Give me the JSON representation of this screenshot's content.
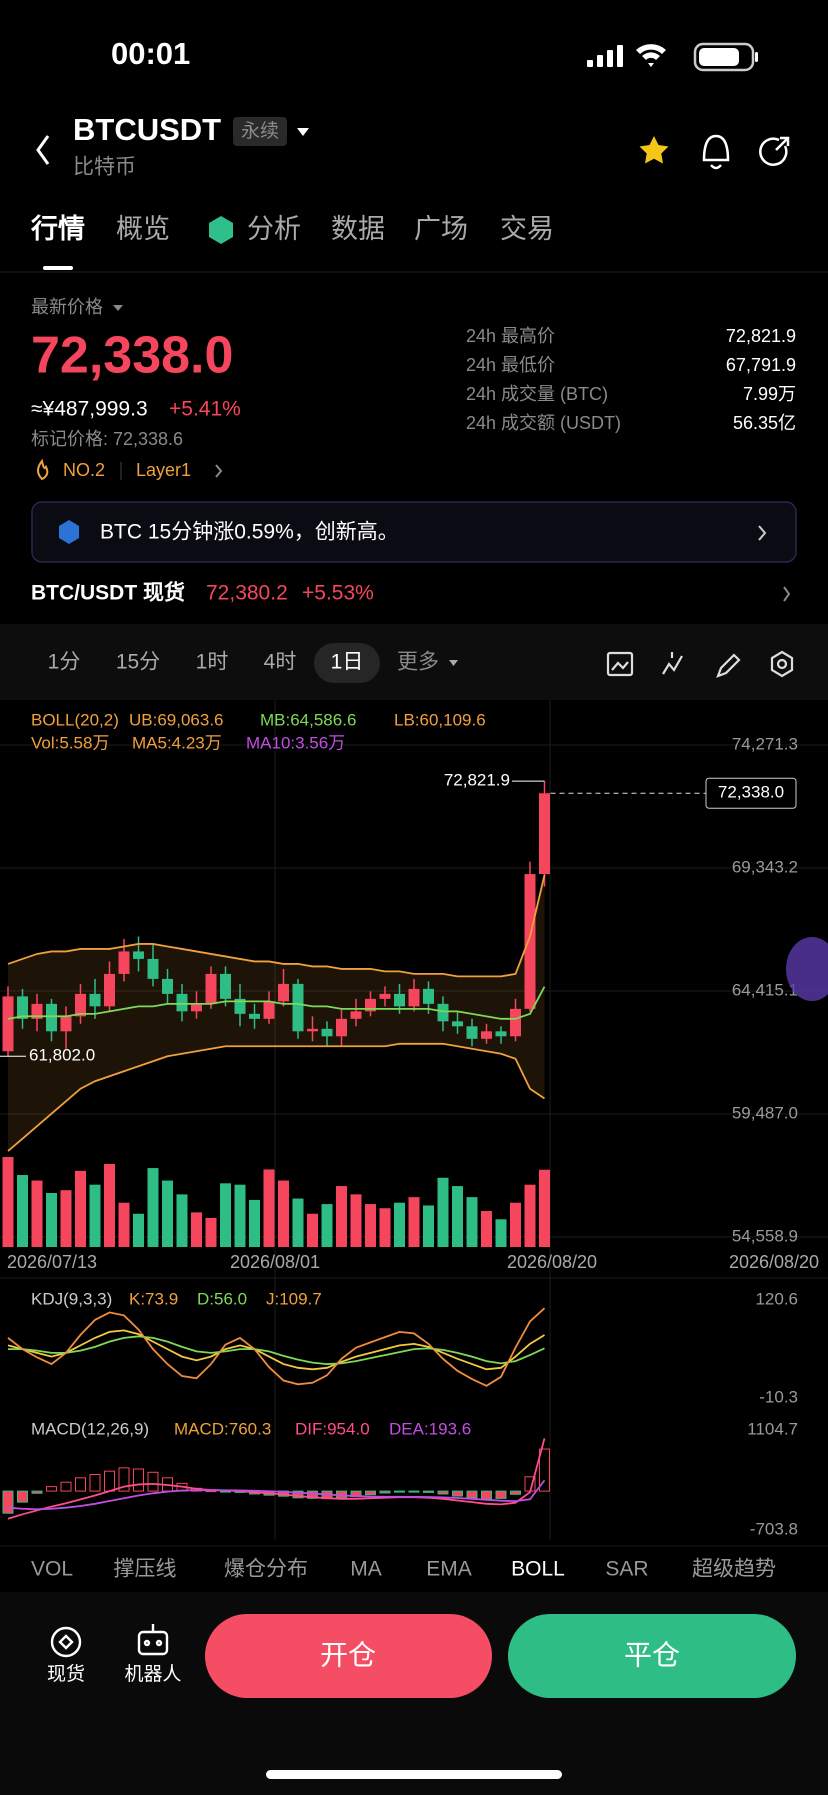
{
  "status_bar": {
    "time": "00:01"
  },
  "header": {
    "symbol": "BTCUSDT",
    "badge": "永续",
    "subtitle": "比特币"
  },
  "tabs": [
    "行情",
    "概览",
    "分析",
    "数据",
    "广场",
    "交易"
  ],
  "ticker": {
    "caption": "最新价格",
    "price": "72,338.0",
    "cny": "≈¥487,999.3",
    "change": "+5.41%",
    "mark": "标记价格: 72,338.6",
    "rank": "NO.2",
    "sector": "Layer1"
  },
  "stats": [
    {
      "label": "24h 最高价",
      "value": "72,821.9"
    },
    {
      "label": "24h 最低价",
      "value": "67,791.9"
    },
    {
      "label": "24h 成交量 (BTC)",
      "value": "7.99万"
    },
    {
      "label": "24h 成交额 (USDT)",
      "value": "56.35亿"
    }
  ],
  "banner": {
    "text": "BTC 15分钟涨0.59%，创新高。"
  },
  "spot": {
    "label": "BTC/USDT 现货",
    "price": "72,380.2",
    "change": "+5.53%"
  },
  "timeframes": [
    "1分",
    "15分",
    "1时",
    "4时",
    "1日"
  ],
  "more": "更多",
  "chart": {
    "type": "candlestick",
    "legend_boll": [
      "BOLL(20,2)",
      "UB:69,063.6",
      "MB:64,586.6",
      "LB:60,109.6"
    ],
    "legend_vol": [
      "Vol:5.58万",
      "MA5:4.23万",
      "MA10:3.56万"
    ],
    "legend_kdj": [
      "KDJ(9,3,3)",
      "K:73.9",
      "D:56.0",
      "J:109.7"
    ],
    "legend_macd": [
      "MACD(12,26,9)",
      "MACD:760.3",
      "DIF:954.0",
      "DEA:193.6"
    ],
    "ylim": [
      54558.9,
      74271.3
    ],
    "yticks": [
      {
        "value": 74271.3,
        "label": "74,271.3"
      },
      {
        "value": 69343.2,
        "label": "69,343.2"
      },
      {
        "value": 64415.1,
        "label": "64,415.1"
      },
      {
        "value": 59487.0,
        "label": "59,487.0"
      },
      {
        "value": 54558.9,
        "label": "54,558.9"
      }
    ],
    "dates": [
      "2026/07/13",
      "2026/08/01",
      "2026/08/20",
      "2026/08/20"
    ],
    "annotations": [
      {
        "value": 72821.9,
        "label": "72,821.9"
      },
      {
        "value": 61802.0,
        "label": "61,802.0"
      },
      {
        "value": 72338.0,
        "label": "72,338.0"
      }
    ],
    "open": [
      62000,
      64200,
      63300,
      63900,
      62800,
      63400,
      64300,
      63800,
      65100,
      66000,
      65700,
      64900,
      64300,
      63600,
      63900,
      65100,
      64100,
      63500,
      63300,
      64000,
      64700,
      62800,
      62900,
      62600,
      63300,
      63600,
      64100,
      64300,
      63800,
      64500,
      63900,
      63200,
      63000,
      62500,
      62800,
      62600,
      63700,
      69100
    ],
    "close": [
      64200,
      63300,
      63900,
      62800,
      63400,
      64300,
      63800,
      65100,
      66000,
      65700,
      64900,
      64300,
      63600,
      63900,
      65100,
      64100,
      63500,
      63300,
      64000,
      64700,
      62800,
      62900,
      62600,
      63300,
      63600,
      64100,
      64300,
      63800,
      64500,
      63900,
      63200,
      63000,
      62500,
      62800,
      62600,
      63700,
      69100,
      72338.0
    ],
    "high": [
      64600,
      64500,
      64300,
      64100,
      63800,
      64700,
      64900,
      65600,
      66500,
      66600,
      66300,
      65300,
      64700,
      64400,
      65400,
      65400,
      64700,
      63900,
      64400,
      65300,
      64900,
      63400,
      63200,
      63700,
      64100,
      64400,
      64600,
      64700,
      64900,
      64800,
      64200,
      63600,
      63300,
      63100,
      63000,
      64100,
      69600,
      72821.9
    ],
    "low": [
      61802.0,
      62900,
      62800,
      62400,
      62100,
      63100,
      63300,
      63600,
      64800,
      65200,
      64600,
      63900,
      63200,
      63300,
      63700,
      63800,
      63000,
      62900,
      63100,
      63800,
      62500,
      62400,
      62200,
      62200,
      63000,
      63400,
      63800,
      63500,
      63600,
      63500,
      62800,
      62700,
      62200,
      62300,
      62300,
      62400,
      63600,
      68600
    ],
    "boll_ub": [
      65500,
      65700,
      65900,
      66000,
      66000,
      66100,
      66100,
      66100,
      66200,
      66300,
      66300,
      66200,
      66100,
      66000,
      65900,
      65800,
      65700,
      65600,
      65600,
      65500,
      65500,
      65400,
      65400,
      65300,
      65300,
      65300,
      65200,
      65200,
      65100,
      65100,
      65100,
      65000,
      65000,
      65000,
      65000,
      65100,
      66600,
      69063.6
    ],
    "boll_mb": [
      63300,
      63400,
      63400,
      63400,
      63400,
      63500,
      63500,
      63600,
      63700,
      63800,
      63800,
      63900,
      63900,
      63900,
      63900,
      64000,
      64000,
      64000,
      64000,
      63900,
      63900,
      63800,
      63800,
      63700,
      63700,
      63700,
      63700,
      63700,
      63700,
      63700,
      63600,
      63600,
      63500,
      63400,
      63300,
      63300,
      63500,
      64586.6
    ],
    "boll_lb": [
      58000,
      58500,
      59000,
      59500,
      60000,
      60500,
      60800,
      61000,
      61200,
      61400,
      61600,
      61800,
      61900,
      62000,
      62100,
      62200,
      62200,
      62200,
      62200,
      62200,
      62200,
      62200,
      62200,
      62200,
      62200,
      62200,
      62200,
      62300,
      62300,
      62300,
      62300,
      62200,
      62100,
      62000,
      61900,
      61700,
      60500,
      60109.6
    ],
    "volume": [
      6.5,
      5.2,
      4.8,
      3.9,
      4.1,
      5.5,
      4.5,
      6.0,
      3.2,
      2.4,
      5.7,
      4.8,
      3.8,
      2.5,
      2.1,
      4.6,
      4.5,
      3.4,
      5.6,
      4.8,
      3.5,
      2.4,
      3.1,
      4.4,
      3.8,
      3.1,
      2.8,
      3.2,
      3.6,
      3.0,
      5.0,
      4.4,
      3.6,
      2.6,
      2.0,
      3.2,
      4.5,
      5.58
    ],
    "kdj_ylim": [
      -10.3,
      120.6
    ],
    "kdj_yticks": [
      120.6,
      -10.3
    ],
    "k": [
      60,
      55,
      50,
      45,
      50,
      60,
      70,
      78,
      80,
      75,
      65,
      55,
      45,
      40,
      45,
      55,
      60,
      55,
      45,
      35,
      30,
      28,
      30,
      38,
      45,
      50,
      55,
      60,
      62,
      58,
      50,
      42,
      35,
      28,
      30,
      45,
      62,
      73.9
    ],
    "d": [
      55,
      55,
      53,
      50,
      50,
      53,
      58,
      65,
      70,
      72,
      70,
      65,
      58,
      52,
      50,
      52,
      55,
      55,
      52,
      46,
      41,
      37,
      35,
      36,
      39,
      43,
      47,
      51,
      55,
      56,
      54,
      50,
      45,
      39,
      36,
      39,
      47,
      56.0
    ],
    "j": [
      70,
      55,
      44,
      35,
      50,
      74,
      94,
      104,
      100,
      81,
      55,
      35,
      19,
      16,
      35,
      61,
      70,
      55,
      31,
      13,
      8,
      10,
      20,
      42,
      57,
      64,
      71,
      78,
      76,
      62,
      42,
      26,
      15,
      6,
      18,
      57,
      92,
      109.7
    ],
    "macd_ylim": [
      -703.8,
      1104.7
    ],
    "macd_yticks": [
      1104.7,
      -703.8
    ],
    "dif": [
      -500,
      -420,
      -350,
      -280,
      -220,
      -150,
      -80,
      0,
      80,
      120,
      130,
      110,
      80,
      40,
      20,
      10,
      0,
      -20,
      -40,
      -60,
      -90,
      -110,
      -130,
      -140,
      -140,
      -130,
      -120,
      -110,
      -110,
      -120,
      -140,
      -170,
      -200,
      -230,
      -240,
      -210,
      -20,
      954.0
    ],
    "dea": [
      -300,
      -320,
      -330,
      -320,
      -300,
      -270,
      -230,
      -180,
      -130,
      -80,
      -40,
      -10,
      10,
      15,
      16,
      15,
      12,
      6,
      -3,
      -14,
      -29,
      -45,
      -62,
      -78,
      -90,
      -98,
      -103,
      -104,
      -105,
      -108,
      -114,
      -125,
      -140,
      -158,
      -174,
      -181,
      -149,
      193.6
    ],
    "macd": [
      -400,
      -200,
      -40,
      80,
      160,
      240,
      300,
      360,
      420,
      400,
      340,
      240,
      140,
      50,
      8,
      -10,
      -24,
      -52,
      -74,
      -92,
      -122,
      -130,
      -136,
      -124,
      -100,
      -64,
      -34,
      -12,
      -10,
      -24,
      -52,
      -90,
      -120,
      -144,
      -132,
      -58,
      258,
      760.3
    ]
  },
  "indicator_tabs": [
    "VOL",
    "撑压线",
    "爆仓分布",
    "MA",
    "EMA",
    "BOLL",
    "SAR",
    "超级趋势"
  ],
  "bottom": {
    "spot": "现货",
    "robot": "机器人",
    "open": "开仓",
    "close": "平仓"
  }
}
